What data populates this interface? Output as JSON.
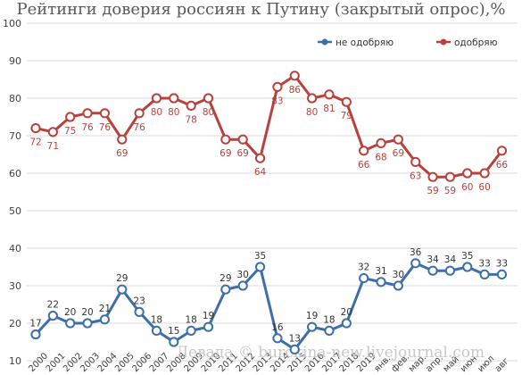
{
  "chart_data": {
    "type": "line",
    "title": "Рейтинги доверия россиян к Путину (закрытый опрос),%",
    "xlabel": "",
    "ylabel": "",
    "ylim": [
      0,
      100
    ],
    "yticks": [
      10,
      20,
      30,
      40,
      50,
      60,
      70,
      80,
      90,
      100
    ],
    "grid": true,
    "legend_position": "top-right",
    "categories": [
      "2000",
      "2001",
      "2002",
      "2003",
      "2004",
      "2005",
      "2006",
      "2007",
      "2008",
      "2009",
      "2010",
      "2011",
      "2012",
      "2013",
      "2014",
      "2015",
      "2016",
      "2017",
      "2018",
      "2019",
      "янв.",
      "фев.",
      "мар.",
      "апр.",
      "май",
      "июн",
      "июл",
      "авг"
    ],
    "tick_labels": [
      "2000",
      "2001",
      "2002",
      "2003",
      "2004",
      "2005",
      "2006",
      "2007",
      "2008",
      "2009",
      "2010",
      "2011",
      "2012",
      "2013",
      "2014",
      "2015",
      "2016",
      "2017",
      "2018",
      "2019",
      "янв.",
      "фев.",
      "мар.",
      "апр.",
      "май",
      "июн",
      "июл",
      "авг"
    ],
    "series": [
      {
        "name": "не одобряю",
        "color": "#3c6eaa",
        "values": [
          17,
          22,
          20,
          20,
          21,
          29,
          23,
          18,
          15,
          18,
          19,
          29,
          30,
          35,
          16,
          13,
          19,
          18,
          20,
          32,
          31,
          30,
          36,
          34,
          34,
          35,
          33,
          33
        ],
        "labels": [
          "17",
          "22",
          "20",
          "20",
          "21",
          "29",
          "23",
          "18",
          "15",
          "18",
          "19",
          "29",
          "30",
          "35",
          "16",
          "13",
          "19",
          "18",
          "20",
          "32",
          "31",
          "30",
          "36",
          "34",
          "34",
          "35",
          "33",
          "33"
        ]
      },
      {
        "name": "одобряю",
        "color": "#b8413c",
        "values": [
          72,
          71,
          75,
          76,
          76,
          69,
          76,
          80,
          80,
          78,
          80,
          69,
          69,
          64,
          83,
          86,
          80,
          81,
          79,
          66,
          68,
          69,
          63,
          59,
          59,
          60,
          60,
          66
        ],
        "labels": [
          "72",
          "71",
          "75",
          "76",
          "76",
          "69",
          "76",
          "80",
          "80",
          "78",
          "80",
          "69",
          "69",
          "64",
          "83",
          "86",
          "80",
          "81",
          "79",
          "66",
          "68",
          "69",
          "63",
          "59",
          "59",
          "60",
          "60",
          "66"
        ]
      }
    ],
    "annotation": "Левада © burckina-new.livejournal.com"
  }
}
